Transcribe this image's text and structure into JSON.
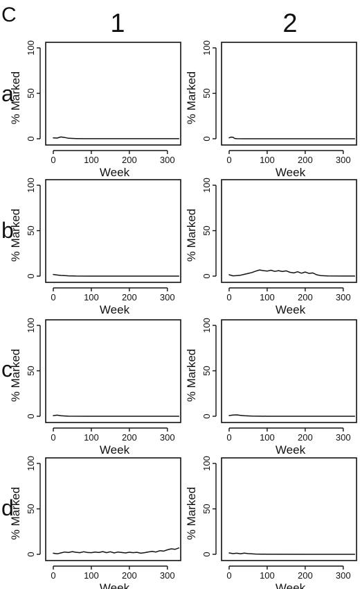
{
  "figure_label": "C",
  "column_labels": [
    "1",
    "2"
  ],
  "row_labels": [
    "a",
    "b",
    "c",
    "d"
  ],
  "chart_data": [
    {
      "type": "line",
      "row": "a",
      "column": "1",
      "xlabel": "Week",
      "ylabel": "% Marked",
      "xlim": [
        -20,
        335
      ],
      "ylim": [
        0,
        100
      ],
      "xticks": [
        0,
        100,
        200,
        300
      ],
      "yticks": [
        0,
        50,
        100
      ],
      "x": [
        0,
        10,
        20,
        30,
        40,
        60,
        80,
        100,
        150,
        200,
        250,
        300,
        330
      ],
      "y": [
        1.0,
        0.8,
        2.0,
        1.4,
        0.5,
        0.2,
        0.1,
        0.1,
        0.1,
        0.1,
        0.1,
        0.1,
        0.1
      ]
    },
    {
      "type": "line",
      "row": "a",
      "column": "2",
      "xlabel": "Week",
      "ylabel": "% Marked",
      "xlim": [
        -20,
        335
      ],
      "ylim": [
        0,
        100
      ],
      "xticks": [
        0,
        100,
        200,
        300
      ],
      "yticks": [
        0,
        50,
        100
      ],
      "x": [
        0,
        5,
        10,
        15,
        20,
        40,
        100,
        200,
        300,
        330
      ],
      "y": [
        1.0,
        1.8,
        1.6,
        0.3,
        0.1,
        0.0,
        0.0,
        0.0,
        0.0,
        0.0
      ]
    },
    {
      "type": "line",
      "row": "b",
      "column": "1",
      "xlabel": "Week",
      "ylabel": "% Marked",
      "xlim": [
        -20,
        335
      ],
      "ylim": [
        0,
        100
      ],
      "xticks": [
        0,
        100,
        200,
        300
      ],
      "yticks": [
        0,
        50,
        100
      ],
      "x": [
        0,
        10,
        20,
        30,
        40,
        60,
        100,
        200,
        300,
        330
      ],
      "y": [
        1.8,
        1.2,
        0.8,
        0.5,
        0.3,
        0.1,
        0.0,
        0.0,
        0.0,
        0.0
      ]
    },
    {
      "type": "line",
      "row": "b",
      "column": "2",
      "xlabel": "Week",
      "ylabel": "% Marked",
      "xlim": [
        -20,
        335
      ],
      "ylim": [
        0,
        100
      ],
      "xticks": [
        0,
        100,
        200,
        300
      ],
      "yticks": [
        0,
        50,
        100
      ],
      "x": [
        0,
        10,
        20,
        30,
        40,
        50,
        60,
        70,
        80,
        90,
        100,
        110,
        120,
        130,
        140,
        150,
        160,
        170,
        180,
        190,
        200,
        210,
        220,
        230,
        240,
        260,
        300,
        330
      ],
      "y": [
        1.5,
        0.3,
        0.5,
        1.0,
        2.0,
        3.0,
        4.0,
        5.5,
        6.8,
        6.0,
        5.5,
        6.5,
        5.2,
        6.0,
        5.0,
        5.8,
        4.2,
        3.5,
        4.8,
        3.2,
        4.5,
        3.0,
        3.5,
        1.5,
        0.6,
        0.2,
        0.1,
        0.1
      ]
    },
    {
      "type": "line",
      "row": "c",
      "column": "1",
      "xlabel": "Week",
      "ylabel": "% Marked",
      "xlim": [
        -20,
        335
      ],
      "ylim": [
        0,
        100
      ],
      "xticks": [
        0,
        100,
        200,
        300
      ],
      "yticks": [
        0,
        50,
        100
      ],
      "x": [
        0,
        10,
        20,
        30,
        40,
        100,
        200,
        300,
        330
      ],
      "y": [
        0.7,
        1.2,
        0.6,
        0.3,
        0.1,
        0.0,
        0.0,
        0.0,
        0.0
      ]
    },
    {
      "type": "line",
      "row": "c",
      "column": "2",
      "xlabel": "Week",
      "ylabel": "% Marked",
      "xlim": [
        -20,
        335
      ],
      "ylim": [
        0,
        100
      ],
      "xticks": [
        0,
        100,
        200,
        300
      ],
      "yticks": [
        0,
        50,
        100
      ],
      "x": [
        0,
        10,
        20,
        30,
        40,
        60,
        100,
        200,
        300,
        330
      ],
      "y": [
        0.8,
        1.4,
        1.5,
        1.0,
        0.5,
        0.2,
        0.0,
        0.0,
        0.0,
        0.0
      ]
    },
    {
      "type": "line",
      "row": "d",
      "column": "1",
      "xlabel": "Week",
      "ylabel": "% Marked",
      "xlim": [
        -20,
        335
      ],
      "ylim": [
        0,
        100
      ],
      "xticks": [
        0,
        100,
        200,
        300
      ],
      "yticks": [
        0,
        50,
        100
      ],
      "x": [
        0,
        10,
        20,
        30,
        40,
        50,
        60,
        70,
        80,
        90,
        100,
        110,
        120,
        130,
        140,
        150,
        160,
        170,
        180,
        190,
        200,
        210,
        220,
        230,
        240,
        250,
        260,
        270,
        280,
        290,
        300,
        310,
        320,
        330
      ],
      "y": [
        1.2,
        0.5,
        1.5,
        2.5,
        2.0,
        3.0,
        2.2,
        1.8,
        2.8,
        2.0,
        1.8,
        2.5,
        2.0,
        3.0,
        1.8,
        2.8,
        1.5,
        2.5,
        2.0,
        1.5,
        2.3,
        1.8,
        2.2,
        1.2,
        1.8,
        2.6,
        3.2,
        2.5,
        4.0,
        3.5,
        5.0,
        6.0,
        5.5,
        7.0
      ]
    },
    {
      "type": "line",
      "row": "d",
      "column": "2",
      "xlabel": "Week",
      "ylabel": "% Marked",
      "xlim": [
        -20,
        335
      ],
      "ylim": [
        0,
        100
      ],
      "xticks": [
        0,
        100,
        200,
        300
      ],
      "yticks": [
        0,
        50,
        100
      ],
      "x": [
        0,
        10,
        20,
        30,
        40,
        50,
        70,
        100,
        200,
        300,
        330
      ],
      "y": [
        1.5,
        0.8,
        1.2,
        0.6,
        1.3,
        0.8,
        0.3,
        0.1,
        0.0,
        0.0,
        0.0
      ]
    }
  ]
}
